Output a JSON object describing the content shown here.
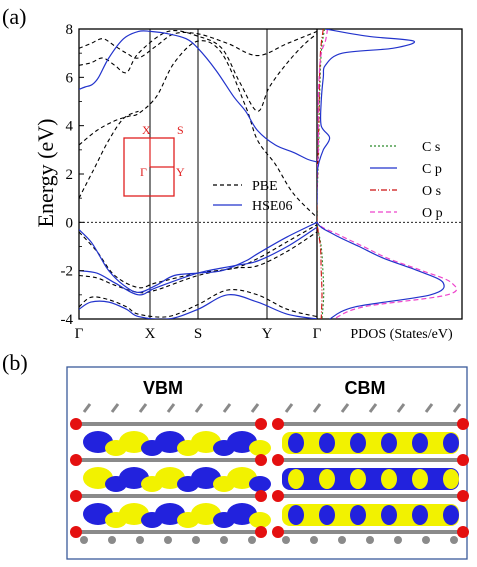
{
  "chart_data": {
    "type": "line",
    "panel_a": {
      "label": "(a)",
      "ylabel": "Energy (eV)",
      "ylim": [
        -4,
        8
      ],
      "yticks": [
        "8",
        "6",
        "4",
        "2",
        "0",
        "-2",
        "-4"
      ],
      "yvals": [
        8,
        6,
        4,
        2,
        0,
        -2,
        -4
      ],
      "kpath_labels": [
        "Γ",
        "X",
        "S",
        "Y",
        "Γ"
      ],
      "pdos_label": "PDOS (States/eV)",
      "fermi_level": 0,
      "band_legend": [
        "PBE",
        "HSE06"
      ],
      "band_colors": {
        "PBE": "#000000",
        "HSE06": "#2233cc"
      },
      "bz_inset": {
        "labels": [
          "X",
          "S",
          "Γ",
          "Y"
        ],
        "color": "#e02020"
      },
      "bands_hse06": [
        {
          "k": [
            0,
            0.1,
            0.22,
            0.33,
            0.5,
            0.75,
            1.0,
            1.2,
            1.5,
            1.8,
            2.0,
            2.3,
            2.6,
            2.8,
            3.0,
            3.3,
            3.6,
            3.85,
            4.0
          ],
          "e": [
            5.5,
            5.6,
            5.7,
            6.0,
            6.8,
            7.6,
            7.9,
            7.9,
            7.8,
            7.6,
            7.2,
            6.3,
            5.2,
            4.6,
            3.8,
            3.2,
            2.9,
            2.6,
            2.5
          ]
        },
        {
          "k": [
            0,
            0.2,
            0.35,
            0.5,
            0.75,
            1.0,
            1.3,
            1.6,
            2.0,
            2.4,
            2.8,
            3.0,
            3.5,
            4.0
          ],
          "e": [
            -0.3,
            -0.8,
            -1.4,
            -2.0,
            -2.6,
            -2.9,
            -2.6,
            -2.2,
            -2.1,
            -2.0,
            -1.6,
            -1.3,
            -0.6,
            0.0
          ]
        },
        {
          "k": [
            0,
            0.3,
            0.6,
            1.0,
            1.3,
            2.0,
            2.6,
            3.0,
            3.5,
            4.0
          ],
          "e": [
            -2.0,
            -2.1,
            -2.5,
            -3.0,
            -2.7,
            -2.1,
            -1.8,
            -1.6,
            -1.0,
            -0.2
          ]
        },
        {
          "k": [
            0,
            0.2,
            0.5,
            0.8,
            1.0,
            1.5,
            2.0,
            2.5,
            3.0,
            3.5,
            4.0
          ],
          "e": [
            -3.6,
            -3.3,
            -3.3,
            -3.6,
            -3.9,
            -4.0,
            -3.6,
            -3.0,
            -3.3,
            -3.8,
            -4.0
          ]
        }
      ],
      "bands_pbe": [
        {
          "k": [
            0,
            0.3,
            0.6,
            0.85,
            1.0,
            1.3,
            1.6,
            2.0,
            2.4,
            2.8,
            3.0,
            3.3,
            3.6,
            4.0
          ],
          "e": [
            3.2,
            3.8,
            4.2,
            4.4,
            4.5,
            5.2,
            6.6,
            7.5,
            7.0,
            4.8,
            3.4,
            2.4,
            1.2,
            0.2
          ]
        },
        {
          "k": [
            0,
            0.25,
            0.5,
            0.75,
            1.0
          ],
          "e": [
            1.0,
            2.2,
            3.4,
            4.3,
            4.6
          ]
        },
        {
          "k": [
            0,
            0.2,
            0.4,
            0.6,
            0.8,
            1.0,
            1.5,
            2.0,
            2.4,
            2.7,
            3.0,
            3.2,
            3.5,
            3.8,
            4.0
          ],
          "e": [
            6.5,
            6.6,
            6.8,
            6.5,
            6.2,
            7.0,
            7.9,
            7.7,
            7.2,
            5.8,
            4.6,
            5.6,
            6.6,
            7.4,
            7.8
          ]
        },
        {
          "k": [
            0,
            0.2,
            0.4,
            0.6,
            0.8,
            1.0,
            1.3,
            1.6,
            2.0,
            2.5,
            3.0,
            3.5,
            4.0
          ],
          "e": [
            7.2,
            7.4,
            7.6,
            7.3,
            7.0,
            6.8,
            7.3,
            7.8,
            7.8,
            7.4,
            6.9,
            7.4,
            7.9
          ]
        },
        {
          "k": [
            0,
            0.3,
            0.6,
            1.0,
            1.3,
            2.0,
            2.6,
            3.0,
            3.5,
            4.0
          ],
          "e": [
            -0.4,
            -1.2,
            -2.2,
            -2.7,
            -2.5,
            -2.1,
            -1.9,
            -1.5,
            -0.8,
            -0.1
          ]
        },
        {
          "k": [
            0,
            0.3,
            0.6,
            1.0,
            1.3,
            2.0,
            2.6,
            3.0,
            3.5,
            4.0
          ],
          "e": [
            -2.2,
            -2.3,
            -2.6,
            -2.9,
            -2.8,
            -2.2,
            -1.9,
            -1.8,
            -1.2,
            -0.4
          ]
        },
        {
          "k": [
            0,
            0.2,
            0.5,
            0.8,
            1.0,
            1.5,
            2.0,
            2.5,
            3.0,
            3.5,
            4.0
          ],
          "e": [
            -3.5,
            -3.1,
            -3.2,
            -3.5,
            -3.8,
            -3.9,
            -3.4,
            -2.8,
            -3.0,
            -3.6,
            -3.9
          ]
        }
      ],
      "pdos_legend": [
        {
          "label": "C s",
          "color": "#2a8a2a",
          "dash": "2,2"
        },
        {
          "label": "C p",
          "color": "#2233cc",
          "dash": ""
        },
        {
          "label": "O s",
          "color": "#cc1111",
          "dash": "6,2,1,2"
        },
        {
          "label": "O p",
          "color": "#ee44cc",
          "dash": "5,3"
        }
      ],
      "pdos_cp": {
        "e": [
          8.0,
          7.7,
          7.5,
          7.2,
          7.0,
          6.5,
          6.0,
          5.0,
          4.0,
          3.5,
          3.0,
          2.5,
          2.0,
          1.0,
          0.0,
          -0.5,
          -1.0,
          -1.5,
          -2.0,
          -2.5,
          -3.0,
          -3.5,
          -4.0
        ],
        "d": [
          0.2,
          1.2,
          2.3,
          1.8,
          0.6,
          0.2,
          0.15,
          0.1,
          0.1,
          0.3,
          0.15,
          0.05,
          0.0,
          0.0,
          0.0,
          0.4,
          1.0,
          1.6,
          2.4,
          3.0,
          2.7,
          0.9,
          0.3
        ]
      },
      "pdos_op": {
        "e": [
          8.0,
          7.5,
          7.0,
          6.0,
          5.0,
          4.0,
          3.0,
          2.0,
          1.0,
          0.0,
          -0.5,
          -1.0,
          -1.5,
          -2.0,
          -2.5,
          -3.0,
          -3.5,
          -4.0
        ],
        "d": [
          0.25,
          0.2,
          0.1,
          0.05,
          0.03,
          0.03,
          0.03,
          0.0,
          0.0,
          0.0,
          0.5,
          1.1,
          1.7,
          2.5,
          3.2,
          3.1,
          1.1,
          0.4
        ]
      },
      "pdos_os": {
        "e": [
          8.0,
          7.0,
          5.0,
          3.0,
          1.0,
          0.0,
          -1.0,
          -2.0,
          -3.0,
          -4.0
        ],
        "d": [
          0.15,
          0.08,
          0.05,
          0.03,
          0.0,
          0.0,
          0.08,
          0.1,
          0.12,
          0.1
        ]
      },
      "pdos_cs": {
        "e": [
          8.0,
          7.0,
          5.0,
          3.0,
          1.0,
          0.0,
          -1.0,
          -2.0,
          -3.0,
          -4.0
        ],
        "d": [
          0.18,
          0.1,
          0.06,
          0.04,
          0.0,
          0.0,
          0.1,
          0.14,
          0.16,
          0.12
        ]
      }
    },
    "panel_b": {
      "label": "(b)",
      "titles": [
        "VBM",
        "CBM"
      ],
      "colors": {
        "yellow": "#f2f200",
        "blue": "#2222dd",
        "red": "#e41010",
        "grey": "#8a8a8a",
        "frame": "#3a5a9a"
      }
    }
  }
}
